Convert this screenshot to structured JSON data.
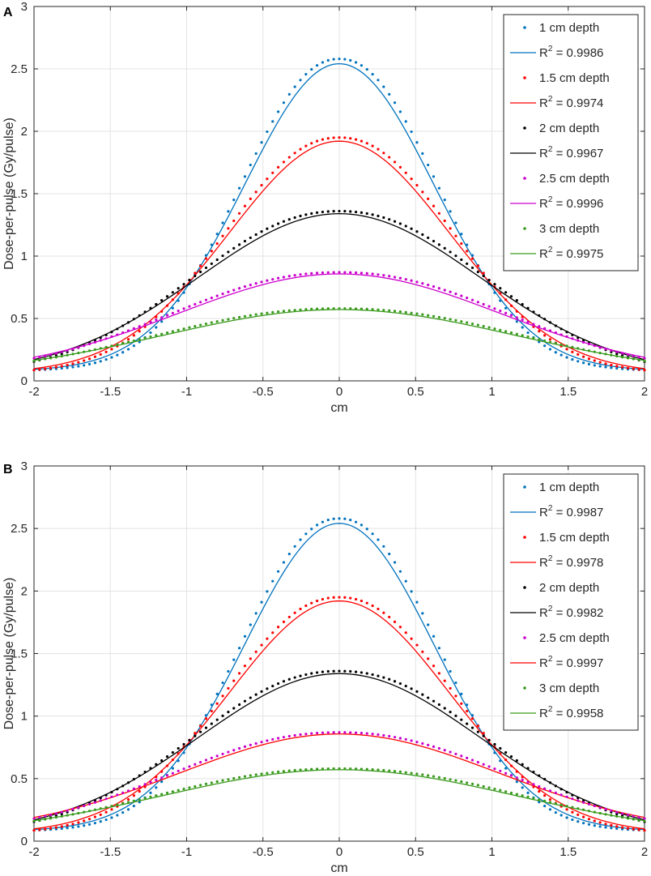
{
  "chart_data": [
    {
      "panel_label": "A",
      "type": "scatter",
      "xlabel": "cm",
      "ylabel": "Dose-per-pulse (Gy/pulse)",
      "xlim": [
        -2,
        2
      ],
      "ylim": [
        0,
        3
      ],
      "xticks": [
        "-2",
        "-1.5",
        "-1",
        "-0.5",
        "0",
        "0.5",
        "1",
        "1.5",
        "2"
      ],
      "yticks": [
        "0",
        "0.5",
        "1",
        "1.5",
        "2",
        "2.5",
        "3"
      ],
      "grid": true,
      "legend_position": "top-right",
      "series": [
        {
          "name": "1 cm depth",
          "color": "#0072BD",
          "fit_color": "#0072BD",
          "fit_r2_label": "R",
          "fit_r2_value": " = 0.9986",
          "peak": 2.58,
          "sigma": 0.62,
          "base": 0.08
        },
        {
          "name": "1.5 cm depth",
          "color": "#FF0000",
          "fit_color": "#FF0000",
          "fit_r2_label": "R",
          "fit_r2_value": " = 0.9974",
          "peak": 1.95,
          "sigma": 0.72,
          "base": 0.06
        },
        {
          "name": "2 cm depth",
          "color": "#000000",
          "fit_color": "#000000",
          "fit_r2_label": "R",
          "fit_r2_value": " = 0.9967",
          "peak": 1.36,
          "sigma": 0.92,
          "base": 0.05
        },
        {
          "name": "2.5 cm depth",
          "color": "#CC00CC",
          "fit_color": "#CC00CC",
          "fit_r2_label": "R",
          "fit_r2_value": " = 0.9996",
          "peak": 0.87,
          "sigma": 1.05,
          "base": 0.06
        },
        {
          "name": "3 cm depth",
          "color": "#3A9A1E",
          "fit_color": "#3A9A1E",
          "fit_r2_label": "R",
          "fit_r2_value": " = 0.9975",
          "peak": 0.58,
          "sigma": 1.15,
          "base": 0.05
        }
      ]
    },
    {
      "panel_label": "B",
      "type": "scatter",
      "xlabel": "cm",
      "ylabel": "Dose-per-pulse (Gy/pulse)",
      "xlim": [
        -2,
        2
      ],
      "ylim": [
        0,
        3
      ],
      "xticks": [
        "-2",
        "-1.5",
        "-1",
        "-0.5",
        "0",
        "0.5",
        "1",
        "1.5",
        "2"
      ],
      "yticks": [
        "0",
        "0.5",
        "1",
        "1.5",
        "2",
        "2.5",
        "3"
      ],
      "grid": true,
      "legend_position": "top-right",
      "series": [
        {
          "name": "1 cm depth",
          "color": "#0072BD",
          "fit_color": "#0072BD",
          "fit_r2_label": "R",
          "fit_r2_value": " = 0.9987",
          "peak": 2.58,
          "sigma": 0.62,
          "base": 0.08
        },
        {
          "name": "1.5 cm depth",
          "color": "#FF0000",
          "fit_color": "#FF0000",
          "fit_r2_label": "R",
          "fit_r2_value": " = 0.9978",
          "peak": 1.95,
          "sigma": 0.72,
          "base": 0.06
        },
        {
          "name": "2 cm depth",
          "color": "#000000",
          "fit_color": "#000000",
          "fit_r2_label": "R",
          "fit_r2_value": " = 0.9982",
          "peak": 1.36,
          "sigma": 0.92,
          "base": 0.05
        },
        {
          "name": "2.5 cm depth",
          "color": "#CC00CC",
          "fit_color": "#FF0000",
          "fit_r2_label": "R",
          "fit_r2_value": " = 0.9997",
          "peak": 0.87,
          "sigma": 1.05,
          "base": 0.06
        },
        {
          "name": "3 cm depth",
          "color": "#3A9A1E",
          "fit_color": "#3A9A1E",
          "fit_r2_label": "R",
          "fit_r2_value": " = 0.9958",
          "peak": 0.58,
          "sigma": 1.15,
          "base": 0.05
        }
      ]
    }
  ]
}
